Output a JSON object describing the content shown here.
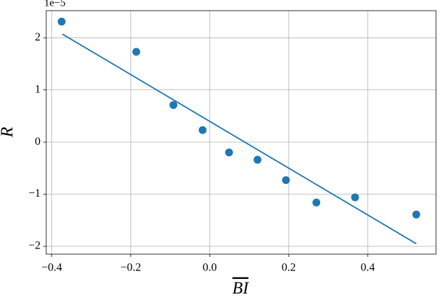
{
  "chart_data": {
    "type": "scatter",
    "xlabel": "BI",
    "ylabel": "R",
    "y_offset_label": "1e−5",
    "xlim": [
      -0.414,
      0.573
    ],
    "ylim": [
      -2.15,
      2.52
    ],
    "xticks": [
      {
        "value": -0.4,
        "label": "−0.4"
      },
      {
        "value": -0.2,
        "label": "−0.2"
      },
      {
        "value": 0,
        "label": "0.0"
      },
      0.2,
      0.4
    ],
    "yticks": [
      {
        "value": -2,
        "label": "−2"
      },
      {
        "value": -1,
        "label": "−1"
      },
      0,
      1,
      2
    ],
    "grid": true,
    "series": [
      {
        "style": "points",
        "color": "#1f77b4",
        "x": [
          -0.375,
          -0.186,
          -0.092,
          -0.018,
          0.049,
          0.121,
          0.193,
          0.27,
          0.368,
          0.523
        ],
        "values": [
          2.31,
          1.73,
          0.71,
          0.23,
          -0.2,
          -0.34,
          -0.73,
          -1.16,
          -1.06,
          -1.39
        ]
      },
      {
        "style": "line",
        "color": "#1f77b4",
        "x": [
          -0.373,
          0.523
        ],
        "values": [
          2.07,
          -1.95
        ]
      }
    ]
  }
}
